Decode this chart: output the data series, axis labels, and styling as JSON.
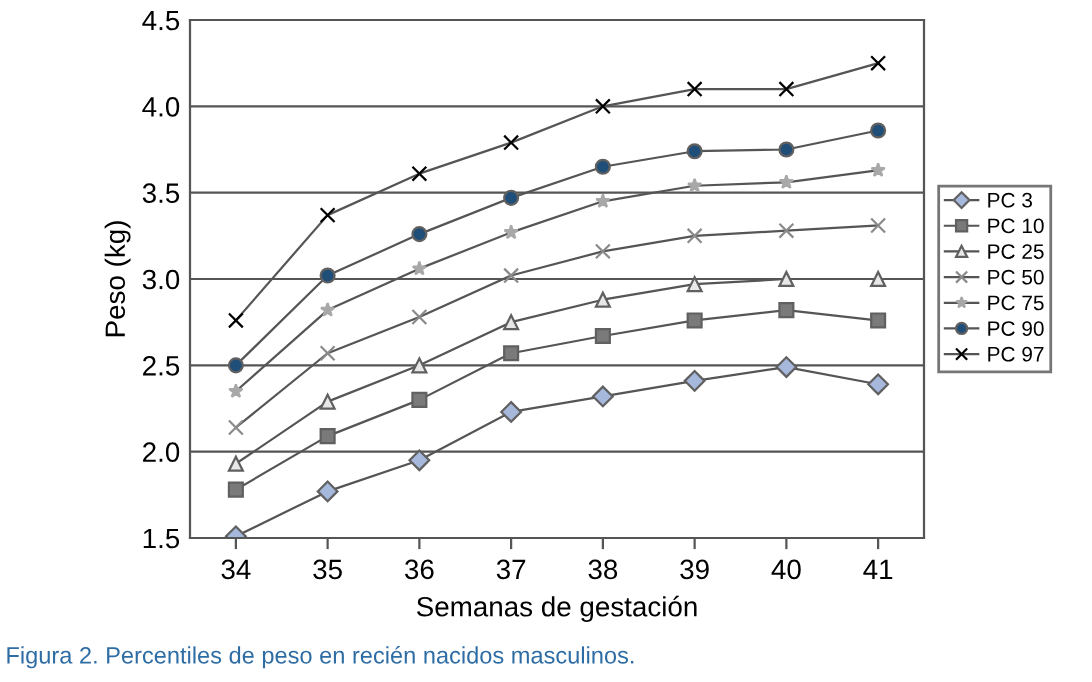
{
  "chart_data": {
    "type": "line",
    "xlabel": "Semanas de gestación",
    "ylabel": "Peso (kg)",
    "categories": [
      "34",
      "35",
      "36",
      "37",
      "38",
      "39",
      "40",
      "41"
    ],
    "ylim": [
      1.5,
      4.5
    ],
    "yticks": [
      {
        "value": 1.5,
        "label": "1.5"
      },
      {
        "value": 2.0,
        "label": "2.0"
      },
      {
        "value": 2.5,
        "label": "2.5"
      },
      {
        "value": 3.0,
        "label": "3.0"
      },
      {
        "value": 3.5,
        "label": "3.5"
      },
      {
        "value": 4.0,
        "label": "4.0"
      },
      {
        "value": 4.5,
        "label": "4.5"
      }
    ],
    "grid": "y",
    "legend": "right",
    "series": [
      {
        "name": "PC 3",
        "color": "#a6b8dc",
        "marker": "diamond",
        "values": [
          1.51,
          1.77,
          1.95,
          2.23,
          2.32,
          2.41,
          2.49,
          2.39
        ]
      },
      {
        "name": "PC 10",
        "color": "#7a7a7a",
        "marker": "square",
        "values": [
          1.78,
          2.09,
          2.3,
          2.57,
          2.67,
          2.76,
          2.82,
          2.76
        ]
      },
      {
        "name": "PC 25",
        "color": "#e8e8e8",
        "marker": "triangle",
        "values": [
          1.93,
          2.29,
          2.5,
          2.75,
          2.88,
          2.97,
          3.0,
          3.0
        ]
      },
      {
        "name": "PC 50",
        "color": "#8a8a8a",
        "marker": "cross",
        "values": [
          2.14,
          2.57,
          2.78,
          3.02,
          3.16,
          3.25,
          3.28,
          3.31
        ]
      },
      {
        "name": "PC 75",
        "color": "#a8a8a8",
        "marker": "star",
        "values": [
          2.35,
          2.82,
          3.06,
          3.27,
          3.45,
          3.54,
          3.56,
          3.63
        ]
      },
      {
        "name": "PC 90",
        "color": "#1f4e79",
        "marker": "circle",
        "values": [
          2.5,
          3.02,
          3.26,
          3.47,
          3.65,
          3.74,
          3.75,
          3.86
        ]
      },
      {
        "name": "PC 97",
        "color": "#000000",
        "marker": "cross",
        "values": [
          2.76,
          3.37,
          3.61,
          3.79,
          4.0,
          4.1,
          4.1,
          4.25
        ]
      }
    ],
    "annotations": [
      "Figura 2. Percentiles de peso en recién nacidos masculinos."
    ]
  }
}
